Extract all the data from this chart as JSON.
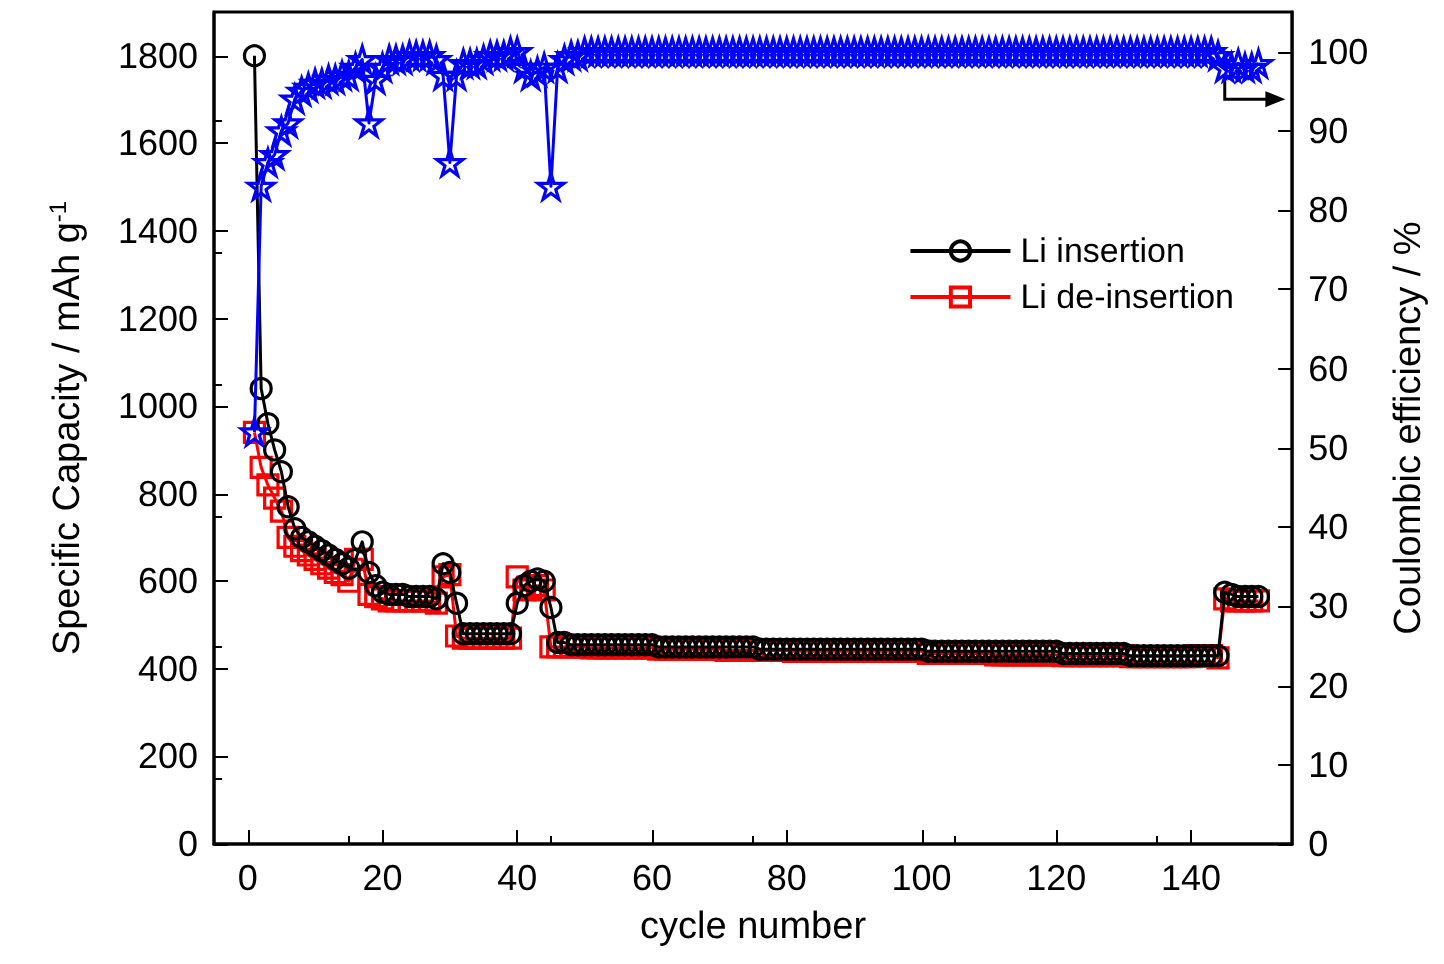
{
  "chart_data": {
    "type": "line",
    "xlabel": "cycle number",
    "ylabel": "Specific Capacity / mAh g$^{-1}$",
    "y2label": "Coulombic efficiency / %",
    "x": [
      1,
      2,
      3,
      4,
      5,
      6,
      7,
      8,
      9,
      10,
      11,
      12,
      13,
      14,
      15,
      16,
      17,
      18,
      19,
      20,
      21,
      22,
      23,
      24,
      25,
      26,
      27,
      28,
      29,
      30,
      31,
      32,
      33,
      34,
      35,
      36,
      37,
      38,
      39,
      40,
      41,
      42,
      43,
      44,
      45,
      46,
      47,
      48,
      49,
      50,
      51,
      52,
      53,
      54,
      55,
      56,
      57,
      58,
      59,
      60,
      61,
      62,
      63,
      64,
      65,
      66,
      67,
      68,
      69,
      70,
      71,
      72,
      73,
      74,
      75,
      76,
      77,
      78,
      79,
      80,
      81,
      82,
      83,
      84,
      85,
      86,
      87,
      88,
      89,
      90,
      91,
      92,
      93,
      94,
      95,
      96,
      97,
      98,
      99,
      100,
      101,
      102,
      103,
      104,
      105,
      106,
      107,
      108,
      109,
      110,
      111,
      112,
      113,
      114,
      115,
      116,
      117,
      118,
      119,
      120,
      121,
      122,
      123,
      124,
      125,
      126,
      127,
      128,
      129,
      130,
      131,
      132,
      133,
      134,
      135,
      136,
      137,
      138,
      139,
      140,
      141,
      142,
      143,
      144,
      145,
      146,
      147,
      148,
      149,
      150
    ],
    "series": [
      {
        "name": "Li insertion",
        "color": "#000000",
        "marker": "circle",
        "values": [
          1800,
          1040,
          960,
          900,
          850,
          770,
          720,
          700,
          690,
          680,
          670,
          660,
          650,
          640,
          630,
          650,
          690,
          620,
          590,
          575,
          570,
          570,
          570,
          565,
          565,
          565,
          565,
          560,
          640,
          620,
          550,
          480,
          480,
          480,
          480,
          480,
          480,
          480,
          480,
          550,
          590,
          600,
          605,
          600,
          540,
          460,
          460,
          455,
          455,
          455,
          455,
          455,
          455,
          455,
          455,
          455,
          455,
          455,
          455,
          455,
          450,
          450,
          450,
          450,
          450,
          450,
          450,
          450,
          450,
          450,
          450,
          450,
          450,
          450,
          450,
          445,
          445,
          445,
          445,
          445,
          445,
          445,
          445,
          445,
          445,
          445,
          445,
          445,
          445,
          445,
          445,
          445,
          445,
          445,
          445,
          445,
          445,
          445,
          445,
          445,
          440,
          440,
          440,
          440,
          440,
          440,
          440,
          440,
          440,
          440,
          440,
          440,
          440,
          440,
          440,
          440,
          440,
          440,
          440,
          440,
          435,
          435,
          435,
          435,
          435,
          435,
          435,
          435,
          435,
          435,
          430,
          430,
          430,
          430,
          430,
          430,
          430,
          430,
          430,
          430,
          430,
          430,
          430,
          430,
          575,
          570,
          565,
          565,
          565,
          565
        ]
      },
      {
        "name": "Li de-insertion",
        "color": "#ff0000",
        "marker": "square",
        "values": [
          940,
          860,
          820,
          790,
          760,
          700,
          680,
          670,
          660,
          650,
          640,
          630,
          620,
          615,
          600,
          650,
          650,
          570,
          565,
          560,
          555,
          555,
          555,
          555,
          555,
          555,
          555,
          550,
          610,
          615,
          475,
          470,
          470,
          470,
          470,
          470,
          470,
          470,
          470,
          610,
          580,
          585,
          590,
          580,
          450,
          450,
          450,
          450,
          450,
          450,
          448,
          448,
          448,
          448,
          448,
          448,
          448,
          448,
          448,
          448,
          445,
          445,
          445,
          445,
          445,
          445,
          445,
          445,
          445,
          445,
          442,
          442,
          442,
          442,
          442,
          442,
          442,
          442,
          442,
          442,
          440,
          440,
          440,
          440,
          440,
          440,
          440,
          440,
          440,
          440,
          440,
          440,
          440,
          440,
          440,
          440,
          440,
          440,
          440,
          440,
          435,
          435,
          435,
          435,
          435,
          435,
          435,
          435,
          435,
          435,
          432,
          432,
          432,
          432,
          432,
          432,
          432,
          432,
          432,
          432,
          430,
          430,
          430,
          430,
          430,
          430,
          430,
          430,
          430,
          430,
          428,
          428,
          428,
          428,
          428,
          428,
          428,
          428,
          428,
          428,
          430,
          430,
          430,
          425,
          560,
          555,
          555,
          555,
          555,
          555
        ]
      },
      {
        "color": "#0000ff",
        "marker": "star",
        "axis": "y2",
        "values": [
          52,
          83,
          86,
          87,
          90,
          91,
          94,
          95,
          95.5,
          96,
          96,
          96.5,
          96.5,
          97,
          97,
          98,
          99,
          91,
          96.5,
          98,
          99,
          99,
          99,
          99.5,
          99.5,
          99.5,
          99.5,
          99,
          97,
          86,
          97,
          98.5,
          98.5,
          98.5,
          99,
          99.5,
          99.5,
          99.5,
          100,
          100,
          98,
          97,
          97.5,
          98,
          83,
          98,
          99,
          99.5,
          99.5,
          100,
          100,
          100,
          100,
          100,
          100,
          100,
          100,
          100,
          100,
          100,
          100,
          100,
          100,
          100,
          100,
          100,
          100,
          100,
          100,
          100,
          100,
          100,
          100,
          100,
          100,
          100,
          100,
          100,
          100,
          100,
          100,
          100,
          100,
          100,
          100,
          100,
          100,
          100,
          100,
          100,
          100,
          100,
          100,
          100,
          100,
          100,
          100,
          100,
          100,
          100,
          100,
          100,
          100,
          100,
          100,
          100,
          100,
          100,
          100,
          100,
          100,
          100,
          100,
          100,
          100,
          100,
          100,
          100,
          100,
          100,
          100,
          100,
          100,
          100,
          100,
          100,
          100,
          100,
          100,
          100,
          100,
          100,
          100,
          100,
          100,
          100,
          100,
          100,
          100,
          100,
          100,
          100,
          100,
          99.5,
          98,
          98,
          98.5,
          98,
          98,
          98.5
        ]
      }
    ],
    "xlim": [
      -5,
      155
    ],
    "xticks": [
      0,
      20,
      40,
      60,
      80,
      100,
      120,
      140
    ],
    "ylim": [
      0,
      1900
    ],
    "yticks": [
      0,
      200,
      400,
      600,
      800,
      1000,
      1200,
      1400,
      1600,
      1800
    ],
    "y2lim": [
      0,
      105
    ],
    "y2ticks": [
      0,
      10,
      20,
      30,
      40,
      50,
      60,
      70,
      80,
      90,
      100
    ],
    "legend": "right",
    "grid": false
  }
}
